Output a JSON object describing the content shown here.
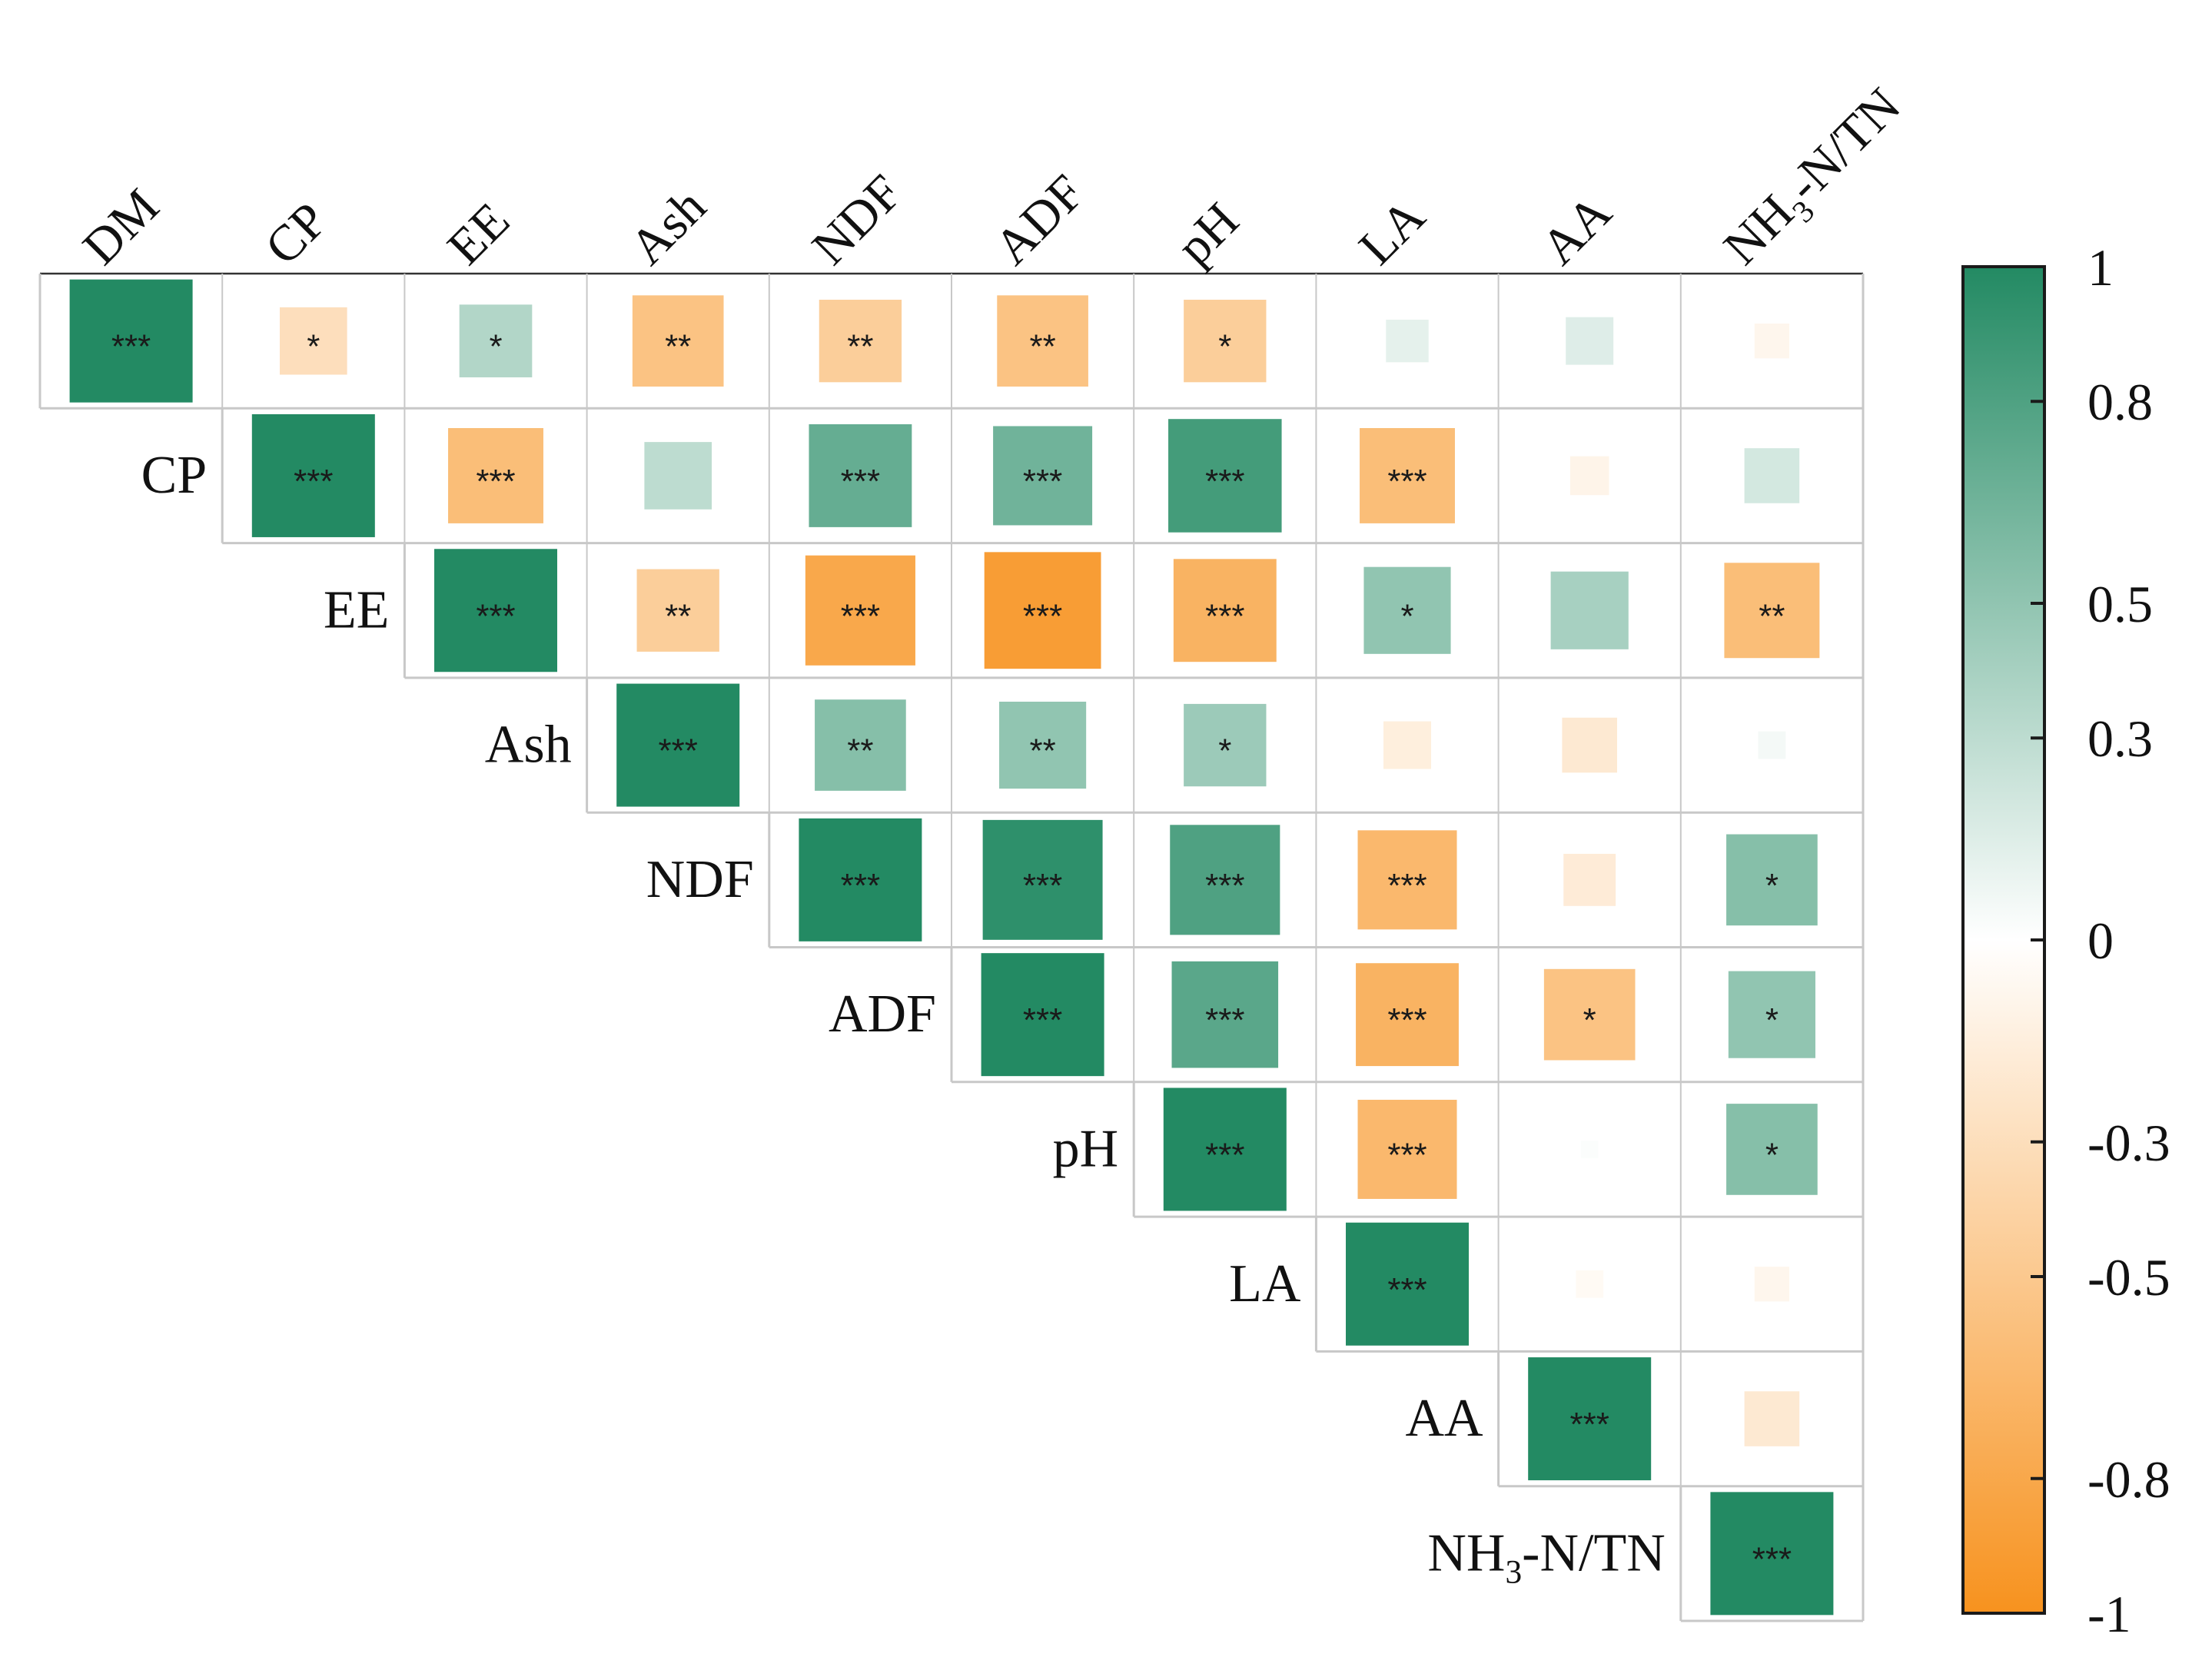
{
  "chart_data": {
    "type": "heatmap",
    "subtype": "upper-triangle correlation matrix",
    "variables": [
      "DM",
      "CP",
      "EE",
      "Ash",
      "NDF",
      "ADF",
      "pH",
      "LA",
      "AA",
      "NH3-N/TN"
    ],
    "variable_labels": [
      {
        "main": "DM",
        "sub": "",
        "rest": ""
      },
      {
        "main": "CP",
        "sub": "",
        "rest": ""
      },
      {
        "main": "EE",
        "sub": "",
        "rest": ""
      },
      {
        "main": "Ash",
        "sub": "",
        "rest": ""
      },
      {
        "main": "NDF",
        "sub": "",
        "rest": ""
      },
      {
        "main": "ADF",
        "sub": "",
        "rest": ""
      },
      {
        "main": "pH",
        "sub": "",
        "rest": ""
      },
      {
        "main": "LA",
        "sub": "",
        "rest": ""
      },
      {
        "main": "AA",
        "sub": "",
        "rest": ""
      },
      {
        "main": "NH",
        "sub": "3",
        "rest": "-N/TN"
      }
    ],
    "correlation": [
      [
        1.0,
        -0.3,
        0.35,
        -0.55,
        -0.45,
        -0.55,
        -0.45,
        0.12,
        0.15,
        -0.08
      ],
      [
        null,
        1.0,
        -0.6,
        0.3,
        0.7,
        0.65,
        0.85,
        -0.6,
        -0.1,
        0.2
      ],
      [
        null,
        null,
        1.0,
        -0.45,
        -0.8,
        -0.9,
        -0.7,
        0.5,
        0.4,
        -0.6
      ],
      [
        null,
        null,
        null,
        1.0,
        0.55,
        0.5,
        0.45,
        -0.15,
        -0.2,
        0.05
      ],
      [
        null,
        null,
        null,
        null,
        1.0,
        0.95,
        0.8,
        -0.65,
        -0.18,
        0.55
      ],
      [
        null,
        null,
        null,
        null,
        null,
        1.0,
        0.75,
        -0.7,
        -0.55,
        0.5
      ],
      [
        null,
        null,
        null,
        null,
        null,
        null,
        1.0,
        -0.65,
        0.02,
        0.55
      ],
      [
        null,
        null,
        null,
        null,
        null,
        null,
        null,
        1.0,
        -0.05,
        -0.08
      ],
      [
        null,
        null,
        null,
        null,
        null,
        null,
        null,
        null,
        1.0,
        -0.2
      ],
      [
        null,
        null,
        null,
        null,
        null,
        null,
        null,
        null,
        null,
        1.0
      ]
    ],
    "significance": [
      [
        "***",
        "*",
        "*",
        "**",
        "**",
        "**",
        "*",
        "",
        "",
        ""
      ],
      [
        null,
        "***",
        "***",
        "",
        "***",
        "***",
        "***",
        "***",
        "",
        ""
      ],
      [
        null,
        null,
        "***",
        "**",
        "***",
        "***",
        "***",
        "*",
        "",
        "**"
      ],
      [
        null,
        null,
        null,
        "***",
        "**",
        "**",
        "*",
        "",
        "",
        ""
      ],
      [
        null,
        null,
        null,
        null,
        "***",
        "***",
        "***",
        "***",
        "",
        "*"
      ],
      [
        null,
        null,
        null,
        null,
        null,
        "***",
        "***",
        "***",
        "*",
        "*"
      ],
      [
        null,
        null,
        null,
        null,
        null,
        null,
        "***",
        "***",
        "",
        "*"
      ],
      [
        null,
        null,
        null,
        null,
        null,
        null,
        null,
        "***",
        "",
        ""
      ],
      [
        null,
        null,
        null,
        null,
        null,
        null,
        null,
        null,
        "***",
        ""
      ],
      [
        null,
        null,
        null,
        null,
        null,
        null,
        null,
        null,
        null,
        "***"
      ]
    ],
    "colorbar": {
      "range": [
        -1,
        1
      ],
      "ticks": [
        1,
        0.8,
        0.5,
        0.3,
        0,
        -0.3,
        -0.5,
        -0.8,
        -1
      ],
      "tick_labels": [
        "1",
        "0.8",
        "0.5",
        "0.3",
        "0",
        "-0.3",
        "-0.5",
        "-0.8",
        "-1"
      ],
      "color_negative": "#f7921e",
      "color_zero": "#ffffff",
      "color_positive": "#238a63",
      "placement": "right"
    },
    "grid_color": "#c8c8c8",
    "frame_color": "#333333"
  }
}
